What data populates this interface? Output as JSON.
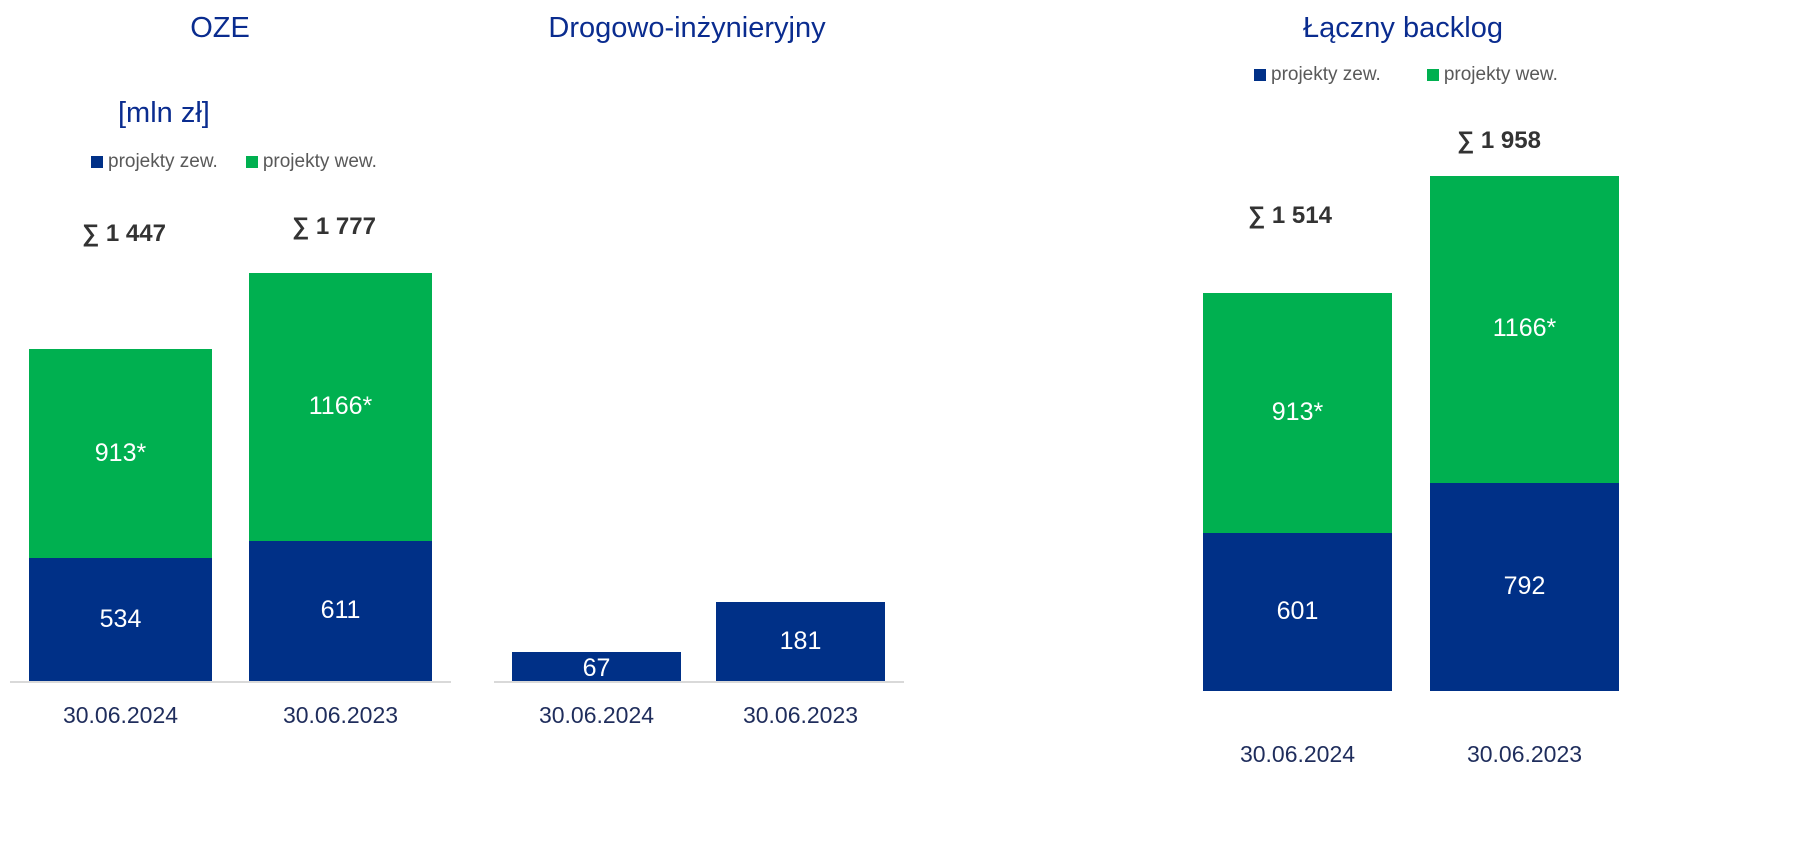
{
  "colors": {
    "zew": "#003087",
    "wew": "#00b050"
  },
  "legend": {
    "zew": "projekty zew.",
    "wew": "projekty wew."
  },
  "unit": "[mln zł]",
  "chart_data": [
    {
      "type": "bar",
      "title": "OZE",
      "categories": [
        "30.06.2024",
        "30.06.2023"
      ],
      "series": [
        {
          "name": "projekty zew.",
          "values": [
            534,
            611
          ]
        },
        {
          "name": "projekty wew.",
          "values": [
            913,
            1166
          ]
        }
      ],
      "value_labels": {
        "projekty zew.": [
          "534",
          "611"
        ],
        "projekty wew.": [
          "913*",
          "1166*"
        ]
      },
      "totals": [
        "∑ 1 447",
        "∑ 1 777"
      ]
    },
    {
      "type": "bar",
      "title": "Drogowo-inżynieryjny",
      "categories": [
        "30.06.2024",
        "30.06.2023"
      ],
      "series": [
        {
          "name": "projekty zew.",
          "values": [
            67,
            181
          ]
        }
      ],
      "value_labels": {
        "projekty zew.": [
          "67",
          "181"
        ]
      }
    },
    {
      "type": "bar",
      "title": "Łączny backlog",
      "categories": [
        "30.06.2024",
        "30.06.2023"
      ],
      "series": [
        {
          "name": "projekty zew.",
          "values": [
            601,
            792
          ]
        },
        {
          "name": "projekty wew.",
          "values": [
            913,
            1166
          ]
        }
      ],
      "value_labels": {
        "projekty zew.": [
          "601",
          "792"
        ],
        "projekty wew.": [
          "913*",
          "1166*"
        ]
      },
      "totals": [
        "∑ 1 514",
        "∑ 1 958"
      ]
    }
  ]
}
